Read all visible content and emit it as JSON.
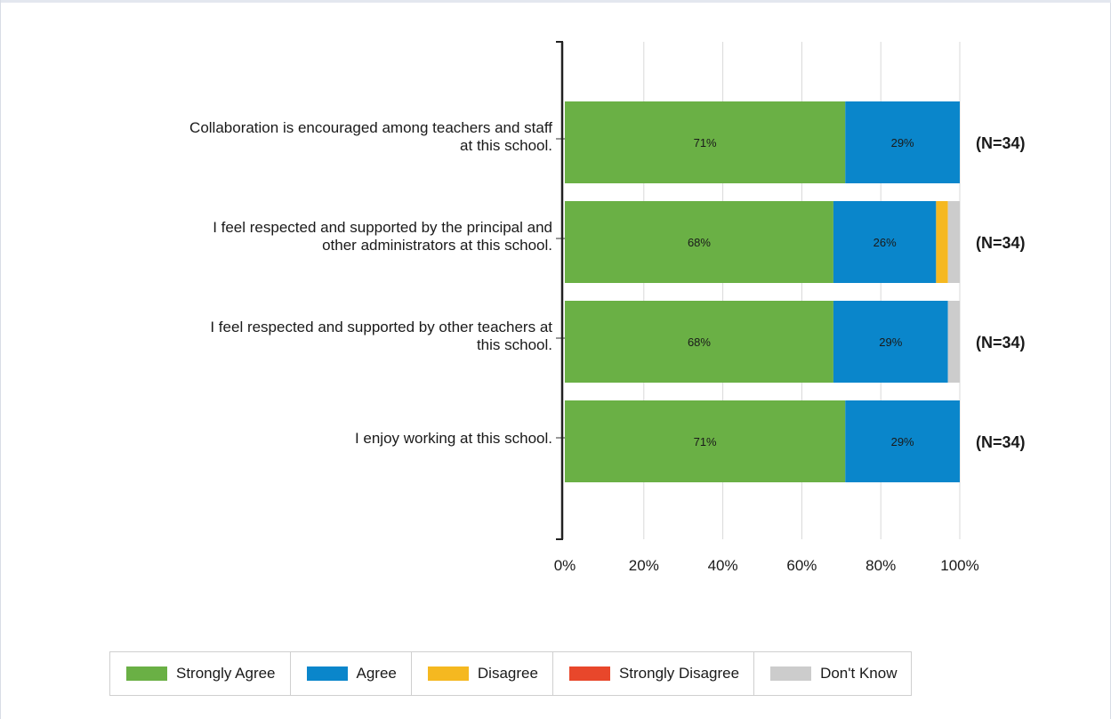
{
  "chart_data": {
    "type": "bar",
    "orientation": "horizontal",
    "stacked": true,
    "title": "",
    "xlabel": "",
    "ylabel": "",
    "xlim": [
      0,
      100
    ],
    "x_ticks": [
      "0%",
      "20%",
      "40%",
      "60%",
      "80%",
      "100%"
    ],
    "grid": true,
    "legend_position": "bottom",
    "categories": [
      "Collaboration is encouraged among teachers and staff at this school.",
      "I feel respected and supported by the principal and other administrators at this school.",
      "I feel respected and supported by other teachers at this school.",
      "I enjoy working at this school."
    ],
    "category_label_lines": [
      [
        "Collaboration is encouraged among teachers and staff",
        "at this school."
      ],
      [
        "I feel respected and supported by the principal and",
        "other administrators at this school."
      ],
      [
        "I feel respected and supported by other teachers at",
        "this school."
      ],
      [
        "I enjoy working at this school."
      ]
    ],
    "n_labels": [
      "(N=34)",
      "(N=34)",
      "(N=34)",
      "(N=34)"
    ],
    "series": [
      {
        "name": "Strongly Agree",
        "color": "#6ab045",
        "values": [
          71,
          68,
          68,
          71
        ],
        "labels": [
          "71%",
          "68%",
          "68%",
          "71%"
        ]
      },
      {
        "name": "Agree",
        "color": "#0a86cb",
        "values": [
          29,
          26,
          29,
          29
        ],
        "labels": [
          "29%",
          "26%",
          "29%",
          "29%"
        ]
      },
      {
        "name": "Disagree",
        "color": "#f5b820",
        "values": [
          0,
          3,
          0,
          0
        ],
        "labels": [
          "",
          "",
          "",
          ""
        ]
      },
      {
        "name": "Strongly Disagree",
        "color": "#e8472b",
        "values": [
          0,
          0,
          0,
          0
        ],
        "labels": [
          "",
          "",
          "",
          ""
        ]
      },
      {
        "name": "Don't Know",
        "color": "#cccccc",
        "values": [
          0,
          3,
          3,
          0
        ],
        "labels": [
          "",
          "",
          "",
          ""
        ]
      }
    ]
  }
}
